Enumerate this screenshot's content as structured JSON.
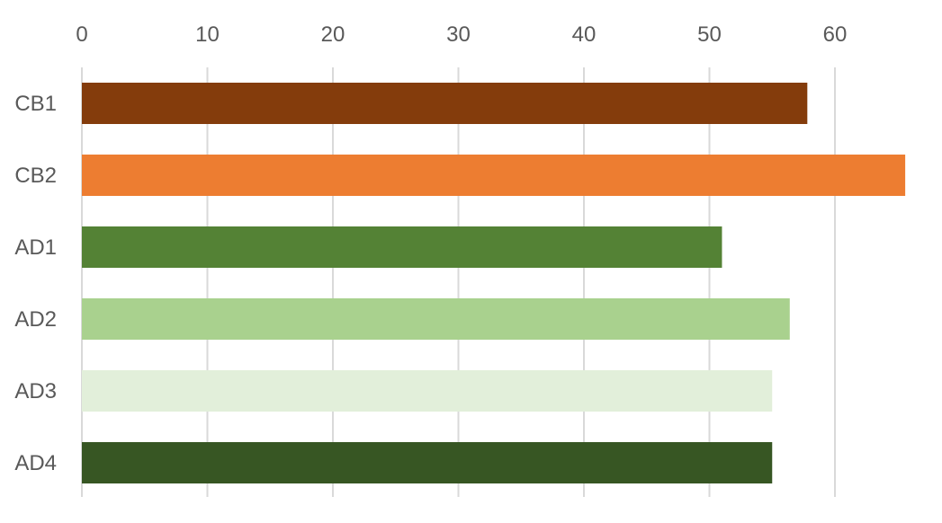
{
  "chart_data": {
    "type": "bar",
    "orientation": "horizontal",
    "title": "",
    "xlabel": "",
    "ylabel": "",
    "axis_position": "top",
    "grid": true,
    "xlim": [
      0,
      65
    ],
    "x_ticks": [
      0,
      10,
      20,
      30,
      40,
      50,
      60
    ],
    "categories": [
      "CB1",
      "CB2",
      "AD1",
      "AD2",
      "AD3",
      "AD4"
    ],
    "values": [
      57.8,
      65.6,
      51.0,
      56.4,
      55.0,
      55.0
    ],
    "colors": [
      "#843c0c",
      "#ed7d31",
      "#548235",
      "#a9d18e",
      "#e2efda",
      "#375623"
    ]
  }
}
